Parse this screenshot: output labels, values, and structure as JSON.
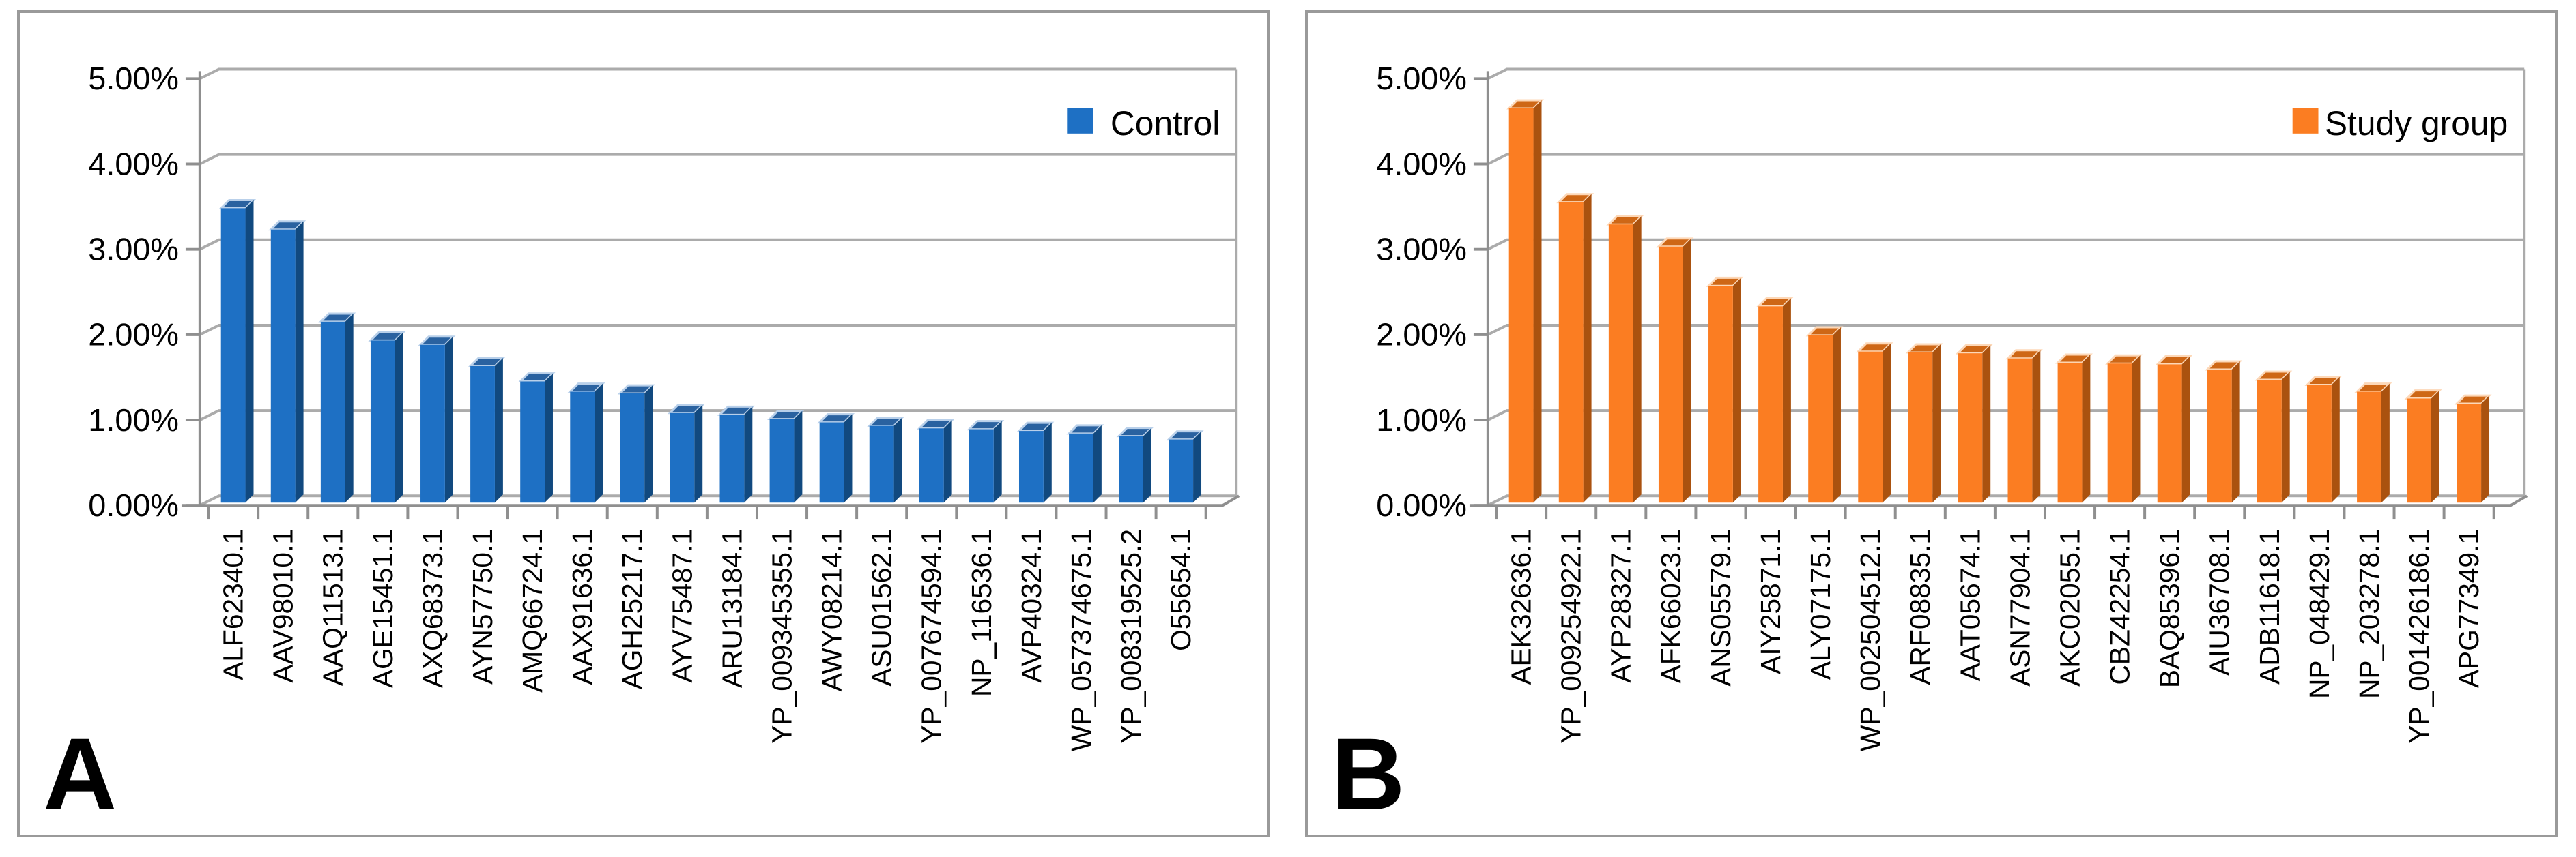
{
  "figure": {
    "style": {
      "background": "#FFFFFF",
      "panel_border": "#9A9A9A",
      "grid": "#ABABAB",
      "axis": "#8F8F8F",
      "text": "#000000"
    }
  },
  "chart_data": [
    {
      "type": "bar",
      "panel_label": "A",
      "title": "",
      "xlabel": "",
      "ylabel": "",
      "legend": [
        "Control"
      ],
      "legend_position": "top-right",
      "grid": true,
      "effect": "3d-column",
      "ylim_percent": [
        0,
        5
      ],
      "y_tick_labels": [
        "0.00%",
        "1.00%",
        "2.00%",
        "3.00%",
        "4.00%",
        "5.00%"
      ],
      "values_unit": "percent",
      "colors": {
        "front": "#1E70C4",
        "side": "#11497F",
        "top": "#2A62A0",
        "highlight": "#B9D0EA"
      },
      "categories": [
        "ALF62340.1",
        "AAV98010.1",
        "AAQ11513.1",
        "AGE15451.1",
        "AXQ68373.1",
        "AYN57750.1",
        "AMQ66724.1",
        "AAX91636.1",
        "AGH25217.1",
        "AYV75487.1",
        "ARU13184.1",
        "YP_009345355.1",
        "AWY08214.1",
        "ASU01562.1",
        "YP_007674594.1",
        "NP_116536.1",
        "AVP40324.1",
        "WP_057374675.1",
        "YP_008319525.2",
        "O55654.1"
      ],
      "values": [
        3.45,
        3.2,
        2.12,
        1.9,
        1.85,
        1.6,
        1.42,
        1.3,
        1.28,
        1.05,
        1.03,
        0.98,
        0.94,
        0.9,
        0.87,
        0.86,
        0.84,
        0.81,
        0.78,
        0.74
      ]
    },
    {
      "type": "bar",
      "panel_label": "B",
      "title": "",
      "xlabel": "",
      "ylabel": "",
      "legend": [
        "Study group"
      ],
      "legend_position": "top-right",
      "grid": true,
      "effect": "3d-column",
      "ylim_percent": [
        0,
        5
      ],
      "y_tick_labels": [
        "0.00%",
        "1.00%",
        "2.00%",
        "3.00%",
        "4.00%",
        "5.00%"
      ],
      "values_unit": "percent",
      "colors": {
        "front": "#FB7D22",
        "side": "#AA520F",
        "top": "#CE6716",
        "highlight": "#FDD8B8"
      },
      "categories": [
        "AEK32636.1",
        "YP_009254922.1",
        "AYP28327.1",
        "AFK66023.1",
        "ANS05579.1",
        "AIY25871.1",
        "ALY07175.1",
        "WP_002504512.1",
        "ARF08835.1",
        "AAT05674.1",
        "ASN77904.1",
        "AKC02055.1",
        "CBZ42254.1",
        "BAQ85396.1",
        "AIU36708.1",
        "ADB11618.1",
        "NP_048429.1",
        "NP_203278.1",
        "YP_001426186.1",
        "APG77349.1"
      ],
      "values": [
        4.62,
        3.52,
        3.26,
        3.0,
        2.54,
        2.3,
        1.96,
        1.77,
        1.76,
        1.75,
        1.69,
        1.64,
        1.63,
        1.62,
        1.56,
        1.44,
        1.38,
        1.3,
        1.22,
        1.16
      ]
    }
  ]
}
